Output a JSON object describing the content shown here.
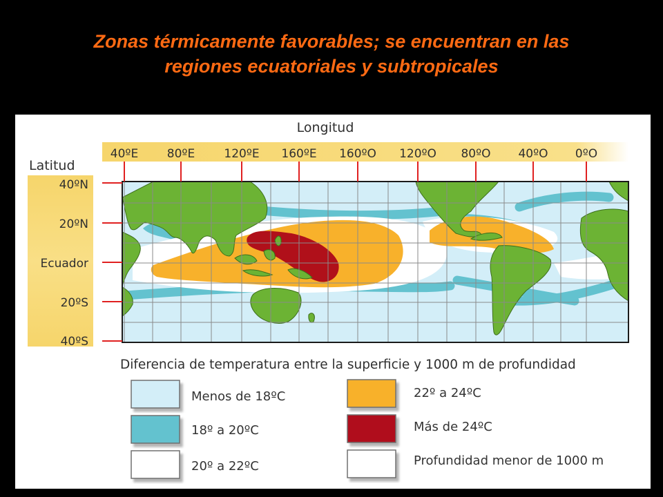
{
  "title": {
    "line1": "Zonas térmicamente favorables; se encuentran en las",
    "line2": "regiones ecuatoriales y subtropicales"
  },
  "map": {
    "x_axis_title": "Longitud",
    "y_axis_title": "Latitud",
    "longitude_labels": [
      "40ºE",
      "80ºE",
      "120ºE",
      "160ºE",
      "160ºO",
      "120ºO",
      "80ºO",
      "40ºO",
      "0ºO"
    ],
    "latitude_labels": [
      "40ºN",
      "20ºN",
      "Ecuador",
      "20ºS",
      "40ºS"
    ],
    "caption": "Diferencia de temperatura entre la superficie y 1000 m de profundidad"
  },
  "legend": [
    {
      "label": "Menos de 18ºC",
      "color": "#d3eef8"
    },
    {
      "label": "18º a 20ºC",
      "color": "#63c2cf"
    },
    {
      "label": "20º a 22ºC",
      "color": "#ffffff"
    },
    {
      "label": "22º a 24ºC",
      "color": "#f8b12b"
    },
    {
      "label": "Más de 24ºC",
      "color": "#b0101a"
    },
    {
      "label": "Profundidad menor de 1000 m",
      "color": "#ffffff"
    }
  ],
  "colors": {
    "title": "#ff6a13",
    "land": "#6cb334",
    "axis_band": "#f6d56b",
    "tick": "#e02020",
    "grid": "#8a8a8a"
  }
}
